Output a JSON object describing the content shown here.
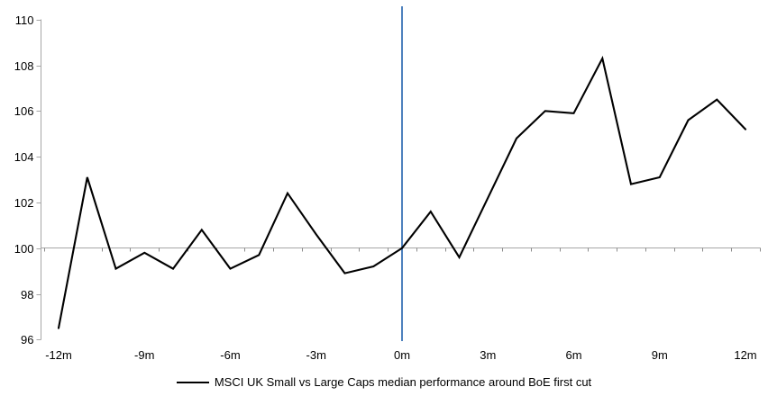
{
  "legend": {
    "series_label": "MSCI UK Small vs Large Caps median performance around BoE first cut"
  },
  "chart_data": {
    "type": "line",
    "title": "",
    "xlabel": "",
    "ylabel": "",
    "x_months": [
      -12,
      -11,
      -10,
      -9,
      -8,
      -7,
      -6,
      -5,
      -4,
      -3,
      -2,
      -1,
      0,
      1,
      2,
      3,
      4,
      5,
      6,
      7,
      8,
      9,
      10,
      11,
      12
    ],
    "series": [
      {
        "name": "MSCI UK Small vs Large Caps median performance around BoE first cut",
        "color": "#000000",
        "values": [
          96.5,
          103.1,
          99.1,
          99.8,
          99.1,
          100.8,
          99.1,
          99.7,
          102.4,
          100.6,
          98.9,
          99.2,
          100.0,
          101.6,
          99.6,
          102.2,
          104.8,
          106.0,
          105.9,
          108.3,
          102.8,
          103.1,
          105.6,
          106.5,
          105.2
        ]
      }
    ],
    "x_tick_labels": [
      "-12m",
      "-9m",
      "-6m",
      "-3m",
      "0m",
      "3m",
      "6m",
      "9m",
      "12m"
    ],
    "x_tick_months": [
      -12,
      -9,
      -6,
      -3,
      0,
      3,
      6,
      9,
      12
    ],
    "y_ticks": [
      96,
      98,
      100,
      102,
      104,
      106,
      108,
      110
    ],
    "ylim": [
      96,
      110
    ],
    "xlim": [
      -12,
      12
    ],
    "grid": "baseline-only",
    "baseline": {
      "y": 100,
      "color": "#a6a6a6"
    },
    "event_line": {
      "x_month": 0,
      "color": "#4e81bd"
    },
    "axis_color": "#a6a6a6",
    "tick_color": "#8c8c8c",
    "text_color": "#000000",
    "legend_position": "bottom-center"
  }
}
